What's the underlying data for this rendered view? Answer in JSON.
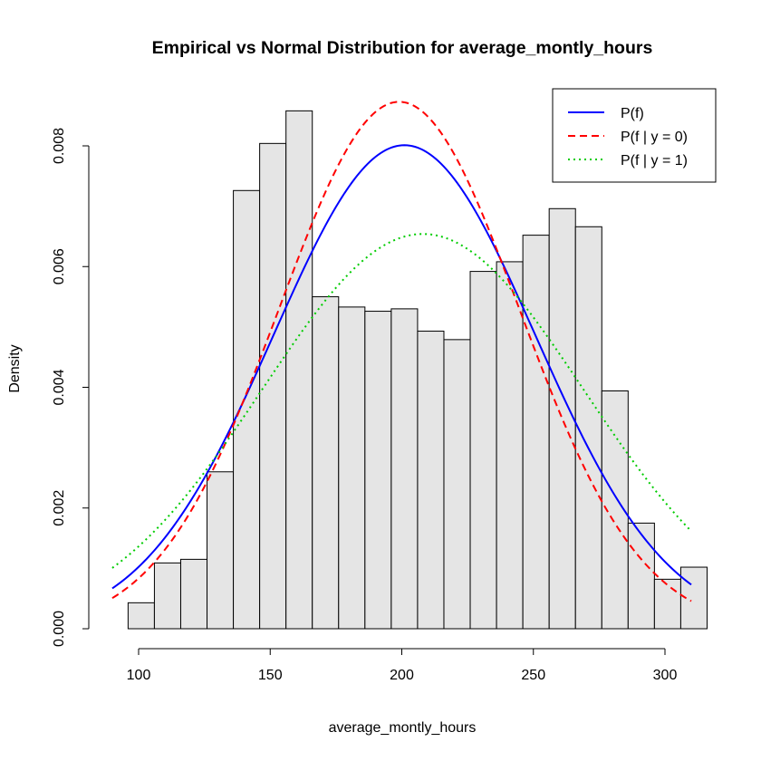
{
  "chart_data": {
    "type": "bar",
    "title": "Empirical vs Normal Distribution for average_montly_hours",
    "xlabel": "average_montly_hours",
    "ylabel": "Density",
    "xlim": [
      90,
      310
    ],
    "ylim": [
      0,
      0.0086
    ],
    "x_ticks": [
      100,
      150,
      200,
      250,
      300
    ],
    "x_tick_labels": [
      "100",
      "150",
      "200",
      "250",
      "300"
    ],
    "y_ticks": [
      0,
      0.002,
      0.004,
      0.006,
      0.008
    ],
    "y_tick_labels": [
      "0.000",
      "0.002",
      "0.004",
      "0.006",
      "0.008"
    ],
    "grid": false,
    "legend_position": "top-right",
    "histogram": {
      "bin_start": 96,
      "bin_width": 10,
      "values": [
        0.00043,
        0.00109,
        0.00115,
        0.0026,
        0.00726,
        0.00804,
        0.00858,
        0.0055,
        0.00533,
        0.00526,
        0.0053,
        0.00493,
        0.00479,
        0.00592,
        0.00608,
        0.00652,
        0.00696,
        0.00666,
        0.00394,
        0.00175,
        0.00082,
        0.00102
      ],
      "fill": "#e5e5e5",
      "stroke": "#000000"
    },
    "series": [
      {
        "name": "P(f)",
        "color": "#0000ff",
        "dash": "solid",
        "mean": 201,
        "sd": 49.8,
        "x_range": [
          90,
          310
        ]
      },
      {
        "name": "P(f | y = 0)",
        "color": "#ff0000",
        "dash": "dashed",
        "mean": 199,
        "sd": 45.7,
        "x_range": [
          90,
          310
        ]
      },
      {
        "name": "P(f | y = 1)",
        "color": "#00cc00",
        "dash": "dotted",
        "mean": 208,
        "sd": 61,
        "x_range": [
          90,
          310
        ]
      }
    ]
  }
}
